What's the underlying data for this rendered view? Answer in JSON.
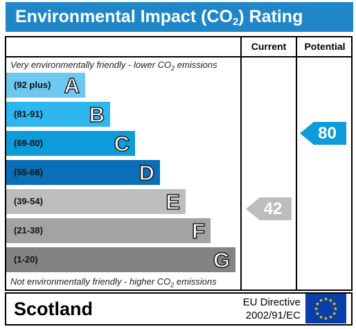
{
  "header": {
    "title_main": "Environmental Impact (CO",
    "title_sub": "2",
    "title_end": ") Rating"
  },
  "columns": {
    "current": "Current",
    "potential": "Potential"
  },
  "notes": {
    "top_pre": "Very environmentally friendly - lower CO",
    "top_sub": "2",
    "top_post": " emissions",
    "bottom_pre": "Not environmentally friendly - higher CO",
    "bottom_sub": "2",
    "bottom_post": " emissions"
  },
  "bands": [
    {
      "range": "(92 plus)",
      "letter": "A",
      "color": "#6dc7ef"
    },
    {
      "range": "(81-91)",
      "letter": "B",
      "color": "#2eb6ef"
    },
    {
      "range": "(69-80)",
      "letter": "C",
      "color": "#0d9bd9"
    },
    {
      "range": "(55-68)",
      "letter": "D",
      "color": "#0a6fb6"
    },
    {
      "range": "(39-54)",
      "letter": "E",
      "color": "#bdbdbd"
    },
    {
      "range": "(21-38)",
      "letter": "F",
      "color": "#a3a3a3"
    },
    {
      "range": "(1-20)",
      "letter": "G",
      "color": "#838383"
    }
  ],
  "ratings": {
    "current": {
      "value": "42",
      "color": "#bdbdbd"
    },
    "potential": {
      "value": "80",
      "color": "#0d9bd9"
    }
  },
  "footer": {
    "region": "Scotland",
    "directive_line1": "EU Directive",
    "directive_line2": "2002/91/EC"
  }
}
